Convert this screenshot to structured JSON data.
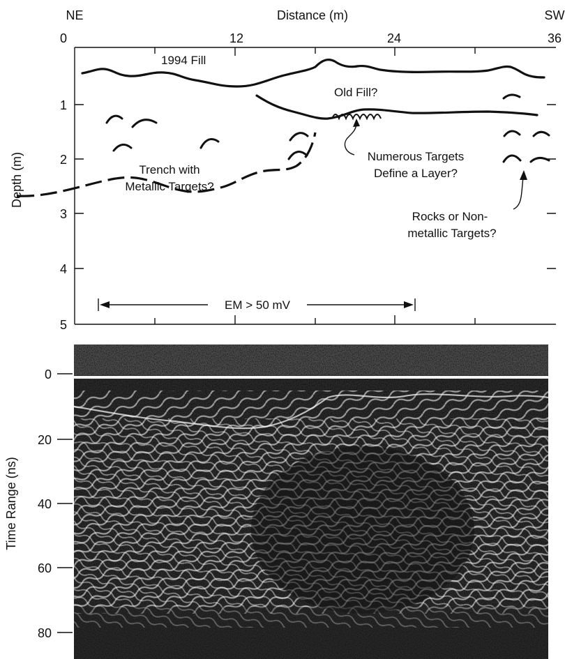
{
  "diagram": {
    "direction_left": "NE",
    "direction_right": "SW",
    "x_axis_label": "Distance (m)",
    "x_ticks": [
      "0",
      "12",
      "24",
      "36"
    ],
    "y_axis_label": "Depth (m)",
    "y_ticks": [
      "1",
      "2",
      "3",
      "4",
      "5"
    ],
    "annotations": {
      "fill_1994": "1994 Fill",
      "old_fill": "Old Fill?",
      "trench_line1": "Trench with",
      "trench_line2": "Metallic Targets?",
      "numerous_line1": "Numerous Targets",
      "numerous_line2": "Define a Layer?",
      "rocks_line1": "Rocks or Non-",
      "rocks_line2": "metallic Targets?",
      "em_label": "EM > 50 mV"
    }
  },
  "radargram": {
    "y_axis_label": "Time Range (ns)",
    "y_ticks": [
      "0",
      "20",
      "40",
      "60",
      "80"
    ]
  }
}
